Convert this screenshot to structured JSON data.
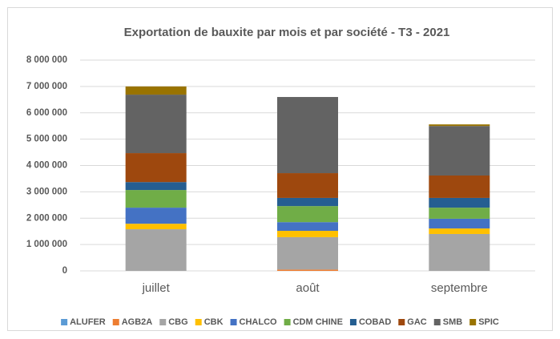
{
  "chart_data": {
    "type": "stacked_bar",
    "title": "Exportation de bauxite par mois et par société - T3 - 2021",
    "categories": [
      "juillet",
      "août",
      "septembre"
    ],
    "series": [
      {
        "name": "ALUFER",
        "color": "#5b9bd5",
        "values": [
          0,
          0,
          0
        ]
      },
      {
        "name": "AGB2A",
        "color": "#ed7d31",
        "values": [
          0,
          50000,
          0
        ]
      },
      {
        "name": "CBG",
        "color": "#a5a5a5",
        "values": [
          1580000,
          1230000,
          1400000
        ]
      },
      {
        "name": "CBK",
        "color": "#ffc000",
        "values": [
          210000,
          240000,
          210000
        ]
      },
      {
        "name": "CHALCO",
        "color": "#4472c4",
        "values": [
          610000,
          330000,
          370000
        ]
      },
      {
        "name": "CDM CHINE",
        "color": "#70ad47",
        "values": [
          670000,
          610000,
          420000
        ]
      },
      {
        "name": "COBAD",
        "color": "#255e91",
        "values": [
          300000,
          310000,
          370000
        ]
      },
      {
        "name": "GAC",
        "color": "#9e480e",
        "values": [
          1100000,
          940000,
          850000
        ]
      },
      {
        "name": "SMB",
        "color": "#636363",
        "values": [
          2220000,
          2890000,
          1880000
        ]
      },
      {
        "name": "SPIC",
        "color": "#997300",
        "values": [
          310000,
          0,
          60000
        ]
      }
    ],
    "ylim": [
      0,
      8000000
    ],
    "yticks": [
      0,
      {
        "value": 1000000,
        "label": "1 000 000"
      },
      {
        "value": 2000000,
        "label": "2 000 000"
      },
      {
        "value": 3000000,
        "label": "3 000 000"
      },
      {
        "value": 4000000,
        "label": "4 000 000"
      },
      {
        "value": 5000000,
        "label": "5 000 000"
      },
      {
        "value": 6000000,
        "label": "6 000 000"
      },
      {
        "value": 7000000,
        "label": "7 000 000"
      },
      {
        "value": 8000000,
        "label": "8 000 000"
      }
    ],
    "grid": true,
    "legend": "bottom"
  }
}
